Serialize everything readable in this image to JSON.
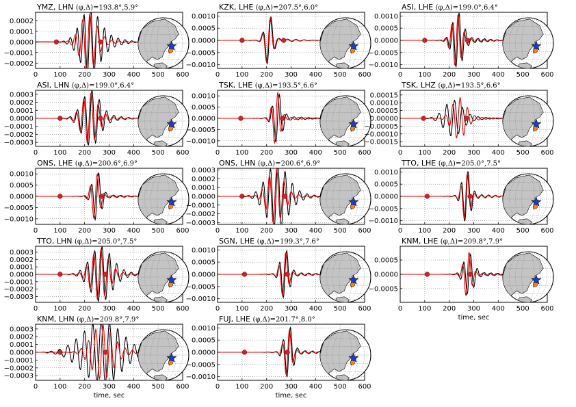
{
  "figure": {
    "xlabel": "time, sec",
    "colors": {
      "observed": "#000000",
      "synthetic": "#e00000",
      "marker": "#d42020",
      "star": "#1a3adb",
      "epicenter": "#ff7f0e",
      "land": "#c4c4c4",
      "ocean": "#ffffff"
    },
    "map_icon": "globe-map-icon"
  },
  "chart_data": [
    {
      "type": "line",
      "station": "YMZ, LHN",
      "params": "(φ,Δ)=193.8°,5.9°",
      "xlim": [
        0,
        600
      ],
      "xticks": [
        "0",
        "100",
        "200",
        "300",
        "400",
        "500",
        "600"
      ],
      "ylim": [
        -0.00025,
        0.00028
      ],
      "yticks": [
        "−0.0002",
        "−0.0001",
        "0.0000",
        "0.0001",
        "0.0002"
      ],
      "xlabel": "",
      "series": [
        {
          "wave": {
            "t0": 80,
            "t1": 430,
            "amp": 0.00028,
            "center": 220,
            "width": 55,
            "period": 28,
            "tail": 0.18,
            "phase": 0.4
          }
        },
        {
          "wave": {
            "t0": 80,
            "t1": 430,
            "amp": 0.00026,
            "center": 215,
            "width": 45,
            "period": 30,
            "tail": 0.07,
            "phase": 0.2
          }
        }
      ],
      "markers": [
        85,
        265
      ]
    },
    {
      "type": "line",
      "station": "KZK, LHE",
      "params": "(φ,Δ)=207.5°,6.0°",
      "xlim": [
        0,
        600
      ],
      "xticks": [
        "0",
        "100",
        "200",
        "300",
        "400",
        "500",
        "600"
      ],
      "ylim": [
        -0.00115,
        0.00115
      ],
      "yticks": [
        "−0.0010",
        "−0.0005",
        "0.0000",
        "0.0005",
        "0.0010"
      ],
      "xlabel": "",
      "series": [
        {
          "wave": {
            "t0": 90,
            "t1": 430,
            "amp": 0.00105,
            "center": 210,
            "width": 22,
            "period": 34,
            "tail": 0.05,
            "phase": 0.0
          }
        },
        {
          "wave": {
            "t0": 90,
            "t1": 430,
            "amp": 0.001,
            "center": 208,
            "width": 22,
            "period": 34,
            "tail": 0.04,
            "phase": 0.1
          }
        }
      ],
      "markers": [
        100,
        270
      ]
    },
    {
      "type": "line",
      "station": "ASI, LHE",
      "params": "(φ,Δ)=199.0°,6.4°",
      "xlim": [
        0,
        600
      ],
      "xticks": [
        "0",
        "100",
        "200",
        "300",
        "400",
        "500",
        "600"
      ],
      "ylim": [
        -0.00115,
        0.00115
      ],
      "yticks": [
        "−0.0010",
        "−0.0005",
        "0.0000",
        "0.0005",
        "0.0010"
      ],
      "xlabel": "",
      "series": [
        {
          "wave": {
            "t0": 80,
            "t1": 430,
            "amp": 0.0011,
            "center": 235,
            "width": 30,
            "period": 26,
            "tail": 0.08,
            "phase": 0.3
          }
        },
        {
          "wave": {
            "t0": 80,
            "t1": 430,
            "amp": 0.00105,
            "center": 230,
            "width": 28,
            "period": 26,
            "tail": 0.06,
            "phase": 0.1
          }
        }
      ],
      "markers": [
        100,
        275
      ]
    },
    {
      "type": "line",
      "station": "ASI, LHN",
      "params": "(φ,Δ)=199.0°,6.4°",
      "xlim": [
        0,
        600
      ],
      "xticks": [
        "0",
        "100",
        "200",
        "300",
        "400",
        "500",
        "600"
      ],
      "ylim": [
        -0.00035,
        0.00035
      ],
      "yticks": [
        "−0.0003",
        "−0.0002",
        "−0.0001",
        "0.0000",
        "0.0001",
        "0.0002",
        "0.0003"
      ],
      "xlabel": "",
      "series": [
        {
          "wave": {
            "t0": 80,
            "t1": 430,
            "amp": 0.00033,
            "center": 225,
            "width": 50,
            "period": 30,
            "tail": 0.1,
            "phase": 0.5
          }
        },
        {
          "wave": {
            "t0": 80,
            "t1": 430,
            "amp": 0.00031,
            "center": 220,
            "width": 45,
            "period": 30,
            "tail": 0.06,
            "phase": 0.3
          }
        }
      ],
      "markers": [
        100,
        265
      ]
    },
    {
      "type": "line",
      "station": "TSK, LHE",
      "params": "(φ,Δ)=193.5°,6.6°",
      "xlim": [
        0,
        600
      ],
      "xticks": [
        "0",
        "100",
        "200",
        "300",
        "400",
        "500",
        "600"
      ],
      "ylim": [
        -0.00125,
        0.00125
      ],
      "yticks": [
        "−0.0010",
        "−0.0005",
        "0.0000",
        "0.0005",
        "0.0010"
      ],
      "xlabel": "",
      "series": [
        {
          "wave": {
            "t0": 90,
            "t1": 430,
            "amp": 0.0011,
            "center": 245,
            "width": 25,
            "period": 30,
            "tail": 0.06,
            "phase": 0.0
          }
        },
        {
          "wave": {
            "t0": 90,
            "t1": 430,
            "amp": 0.0012,
            "center": 240,
            "width": 22,
            "period": 28,
            "tail": 0.04,
            "phase": 0.2
          }
        }
      ],
      "markers": [
        95,
        265
      ]
    },
    {
      "type": "line",
      "station": "TSK, LHZ",
      "params": "(φ,Δ)=193.5°,6.6°",
      "xlim": [
        0,
        600
      ],
      "xticks": [
        "0",
        "100",
        "200",
        "300",
        "400",
        "500",
        "600"
      ],
      "ylim": [
        -0.00018,
        0.00018
      ],
      "yticks": [
        "−0.00015",
        "−0.00010",
        "−0.00005",
        "0.00000",
        "0.00005",
        "0.00010",
        "0.00015"
      ],
      "xlabel": "",
      "series": [
        {
          "wave": {
            "t0": 80,
            "t1": 430,
            "amp": 0.00011,
            "center": 215,
            "width": 50,
            "period": 32,
            "tail": 0.1,
            "phase": 0.2
          }
        },
        {
          "wave": {
            "t0": 80,
            "t1": 430,
            "amp": 0.00013,
            "center": 240,
            "width": 40,
            "period": 30,
            "tail": 0.06,
            "phase": 0.6
          }
        }
      ],
      "markers": [
        95,
        270
      ]
    },
    {
      "type": "line",
      "station": "ONS, LHE",
      "params": "(φ,Δ)=200.6°,6.9°",
      "xlim": [
        0,
        600
      ],
      "xticks": [
        "0",
        "100",
        "200",
        "300",
        "400",
        "500",
        "600"
      ],
      "ylim": [
        -0.00125,
        0.00125
      ],
      "yticks": [
        "−0.0010",
        "−0.0005",
        "0.0000",
        "0.0005",
        "0.0010"
      ],
      "xlabel": "",
      "series": [
        {
          "wave": {
            "t0": 90,
            "t1": 430,
            "amp": 0.0011,
            "center": 250,
            "width": 25,
            "period": 30,
            "tail": 0.05,
            "phase": 0.0
          }
        },
        {
          "wave": {
            "t0": 90,
            "t1": 430,
            "amp": 0.00105,
            "center": 245,
            "width": 24,
            "period": 30,
            "tail": 0.03,
            "phase": 0.1
          }
        }
      ],
      "markers": [
        100,
        270
      ]
    },
    {
      "type": "line",
      "station": "ONS, LHN",
      "params": "(φ,Δ)=200.6°,6.9°",
      "xlim": [
        0,
        600
      ],
      "xticks": [
        "0",
        "100",
        "200",
        "300",
        "400",
        "500",
        "600"
      ],
      "ylim": [
        -0.00032,
        0.00032
      ],
      "yticks": [
        "−0.0003",
        "−0.0002",
        "−0.0001",
        "0.0000",
        "0.0001",
        "0.0002",
        "0.0003"
      ],
      "xlabel": "",
      "series": [
        {
          "wave": {
            "t0": 80,
            "t1": 430,
            "amp": 0.00035,
            "center": 240,
            "width": 60,
            "period": 30,
            "tail": 0.12,
            "phase": 0.4
          }
        },
        {
          "wave": {
            "t0": 80,
            "t1": 430,
            "amp": 0.0003,
            "center": 235,
            "width": 45,
            "period": 30,
            "tail": 0.06,
            "phase": 0.2
          }
        }
      ],
      "markers": [
        100,
        275
      ]
    },
    {
      "type": "line",
      "station": "TTO, LHE",
      "params": "(φ,Δ)=205.0°,7.5°",
      "xlim": [
        0,
        600
      ],
      "xticks": [
        "0",
        "100",
        "200",
        "300",
        "400",
        "500",
        "600"
      ],
      "ylim": [
        -0.00115,
        0.00115
      ],
      "yticks": [
        "−0.0010",
        "−0.0005",
        "0.0000",
        "0.0005",
        "0.0010"
      ],
      "xlabel": "",
      "series": [
        {
          "wave": {
            "t0": 100,
            "t1": 430,
            "amp": 0.00105,
            "center": 270,
            "width": 25,
            "period": 28,
            "tail": 0.06,
            "phase": 0.0
          }
        },
        {
          "wave": {
            "t0": 100,
            "t1": 430,
            "amp": 0.001,
            "center": 268,
            "width": 22,
            "period": 28,
            "tail": 0.04,
            "phase": 0.1
          }
        }
      ],
      "markers": [
        110,
        285
      ]
    },
    {
      "type": "line",
      "station": "TTO, LHN",
      "params": "(φ,Δ)=205.0°,7.5°",
      "xlim": [
        0,
        600
      ],
      "xticks": [
        "0",
        "100",
        "200",
        "300",
        "400",
        "500",
        "600"
      ],
      "ylim": [
        -0.00038,
        0.00038
      ],
      "yticks": [
        "−0.0003",
        "−0.0002",
        "−0.0001",
        "0.0000",
        "0.0001",
        "0.0002",
        "0.0003"
      ],
      "xlabel": "",
      "series": [
        {
          "wave": {
            "t0": 80,
            "t1": 450,
            "amp": 0.00035,
            "center": 265,
            "width": 60,
            "period": 30,
            "tail": 0.12,
            "phase": 0.3
          }
        },
        {
          "wave": {
            "t0": 80,
            "t1": 450,
            "amp": 0.00033,
            "center": 260,
            "width": 50,
            "period": 30,
            "tail": 0.06,
            "phase": 0.1
          }
        }
      ],
      "markers": [
        100,
        285
      ]
    },
    {
      "type": "line",
      "station": "SGN, LHE",
      "params": "(φ,Δ)=199.3°,7.6°",
      "xlim": [
        0,
        600
      ],
      "xticks": [
        "0",
        "100",
        "200",
        "300",
        "400",
        "500",
        "600"
      ],
      "ylim": [
        -0.00115,
        0.00115
      ],
      "yticks": [
        "−0.0010",
        "−0.0005",
        "0.0000",
        "0.0005",
        "0.0010"
      ],
      "xlabel": "",
      "series": [
        {
          "wave": {
            "t0": 100,
            "t1": 430,
            "amp": 0.001,
            "center": 275,
            "width": 25,
            "period": 30,
            "tail": 0.06,
            "phase": 0.0
          }
        },
        {
          "wave": {
            "t0": 100,
            "t1": 430,
            "amp": 0.00095,
            "center": 272,
            "width": 22,
            "period": 30,
            "tail": 0.04,
            "phase": 0.1
          }
        }
      ],
      "markers": [
        110,
        285
      ]
    },
    {
      "type": "line",
      "station": "KNM, LHE",
      "params": "(φ,Δ)=209.8°,7.9°",
      "xlim": [
        0,
        600
      ],
      "xticks": [
        "0",
        "100",
        "200",
        "300",
        "400",
        "500",
        "600"
      ],
      "ylim": [
        -0.00098,
        0.00098
      ],
      "yticks": [
        "−0.0005",
        "0.0000",
        "0.0005"
      ],
      "xlabel": "time, sec",
      "series": [
        {
          "wave": {
            "t0": 90,
            "t1": 450,
            "amp": 0.0007,
            "center": 280,
            "width": 28,
            "period": 28,
            "tail": 0.08,
            "phase": 0.0
          }
        },
        {
          "wave": {
            "t0": 90,
            "t1": 450,
            "amp": 0.0008,
            "center": 275,
            "width": 22,
            "period": 28,
            "tail": 0.05,
            "phase": 0.1
          }
        }
      ],
      "markers": [
        110,
        285
      ]
    },
    {
      "type": "line",
      "station": "KNM, LHN",
      "params": "(φ,Δ)=209.8°,7.9°",
      "xlim": [
        0,
        600
      ],
      "xticks": [
        "0",
        "100",
        "200",
        "300",
        "400",
        "500",
        "600"
      ],
      "ylim": [
        -0.00036,
        0.00036
      ],
      "yticks": [
        "−0.0003",
        "−0.0002",
        "−0.0001",
        "0.0000",
        "0.0001",
        "0.0002",
        "0.0003"
      ],
      "xlabel": "time, sec",
      "series": [
        {
          "wave": {
            "t0": 20,
            "t1": 450,
            "amp": 0.00035,
            "center": 260,
            "width": 110,
            "period": 34,
            "tail": 0.25,
            "phase": 0.2
          }
        },
        {
          "wave": {
            "t0": 60,
            "t1": 450,
            "amp": 0.00033,
            "center": 270,
            "width": 60,
            "period": 30,
            "tail": 0.1,
            "phase": 0.4
          }
        }
      ],
      "markers": [
        100,
        285
      ]
    },
    {
      "type": "line",
      "station": "FUJ, LHE",
      "params": "(φ,Δ)=201.7°,8.0°",
      "xlim": [
        0,
        600
      ],
      "xticks": [
        "0",
        "100",
        "200",
        "300",
        "400",
        "500",
        "600"
      ],
      "ylim": [
        -0.00115,
        0.00115
      ],
      "yticks": [
        "−0.0010",
        "−0.0005",
        "0.0000",
        "0.0005",
        "0.0010"
      ],
      "xlabel": "time, sec",
      "series": [
        {
          "wave": {
            "t0": 100,
            "t1": 450,
            "amp": 0.00105,
            "center": 290,
            "width": 25,
            "period": 30,
            "tail": 0.06,
            "phase": 0.0
          }
        },
        {
          "wave": {
            "t0": 100,
            "t1": 450,
            "amp": 0.001,
            "center": 287,
            "width": 22,
            "period": 30,
            "tail": 0.04,
            "phase": 0.1
          }
        }
      ],
      "markers": [
        110,
        285
      ]
    }
  ]
}
